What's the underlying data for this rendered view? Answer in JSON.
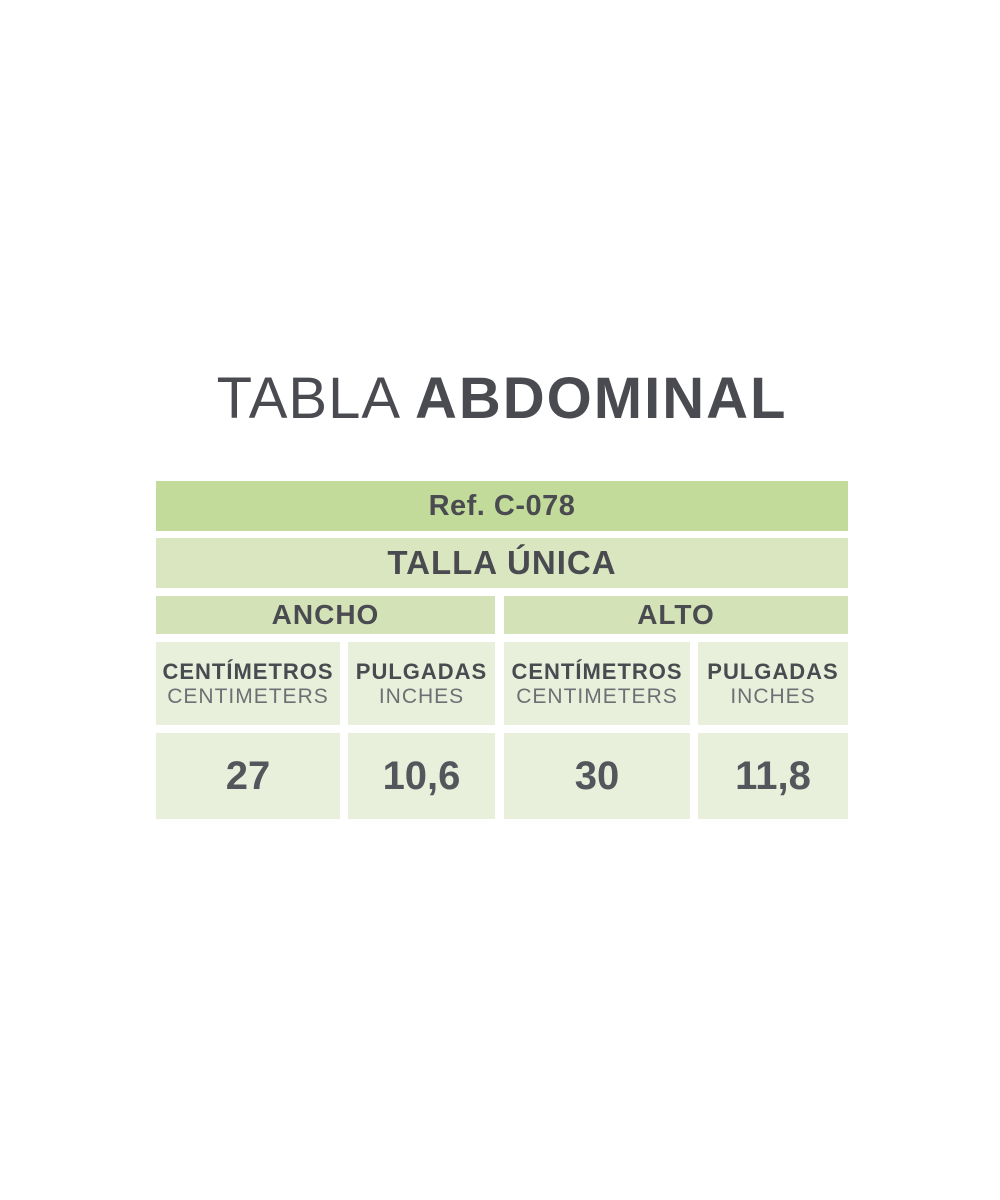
{
  "title": {
    "regular": "TABLA",
    "bold": "ABDOMINAL"
  },
  "table": {
    "ref_label": "Ref. C-078",
    "size_label": "TALLA ÚNICA",
    "dimension_headers": [
      {
        "label": "ANCHO"
      },
      {
        "label": "ALTO"
      }
    ],
    "sub_headers": [
      {
        "primary": "CENTÍMETROS",
        "secondary": "CENTIMETERS"
      },
      {
        "primary": "PULGADAS",
        "secondary": "INCHES"
      },
      {
        "primary": "CENTÍMETROS",
        "secondary": "CENTIMETERS"
      },
      {
        "primary": "PULGADAS",
        "secondary": "INCHES"
      }
    ],
    "values": [
      "27",
      "10,6",
      "30",
      "11,8"
    ]
  },
  "colors": {
    "ref_row_green": "#c2db9a",
    "size_row_green": "#d9e6c0",
    "dimension_row_green": "#d4e2b7",
    "cell_pale_green": "#e8f0dc",
    "text_dark": "#4a4b50",
    "text_gray": "#6d7073",
    "background": "#ffffff"
  },
  "chart_data": {
    "type": "table",
    "title": "TABLA ABDOMINAL",
    "reference": "Ref. C-078",
    "size": "TALLA ÚNICA",
    "column_groups": [
      {
        "name": "ANCHO",
        "columns": [
          "CENTÍMETROS (CENTIMETERS)",
          "PULGADAS (INCHES)"
        ]
      },
      {
        "name": "ALTO",
        "columns": [
          "CENTÍMETROS (CENTIMETERS)",
          "PULGADAS (INCHES)"
        ]
      }
    ],
    "rows": [
      {
        "ancho_cm": 27,
        "ancho_in": 10.6,
        "alto_cm": 30,
        "alto_in": 11.8
      }
    ]
  }
}
